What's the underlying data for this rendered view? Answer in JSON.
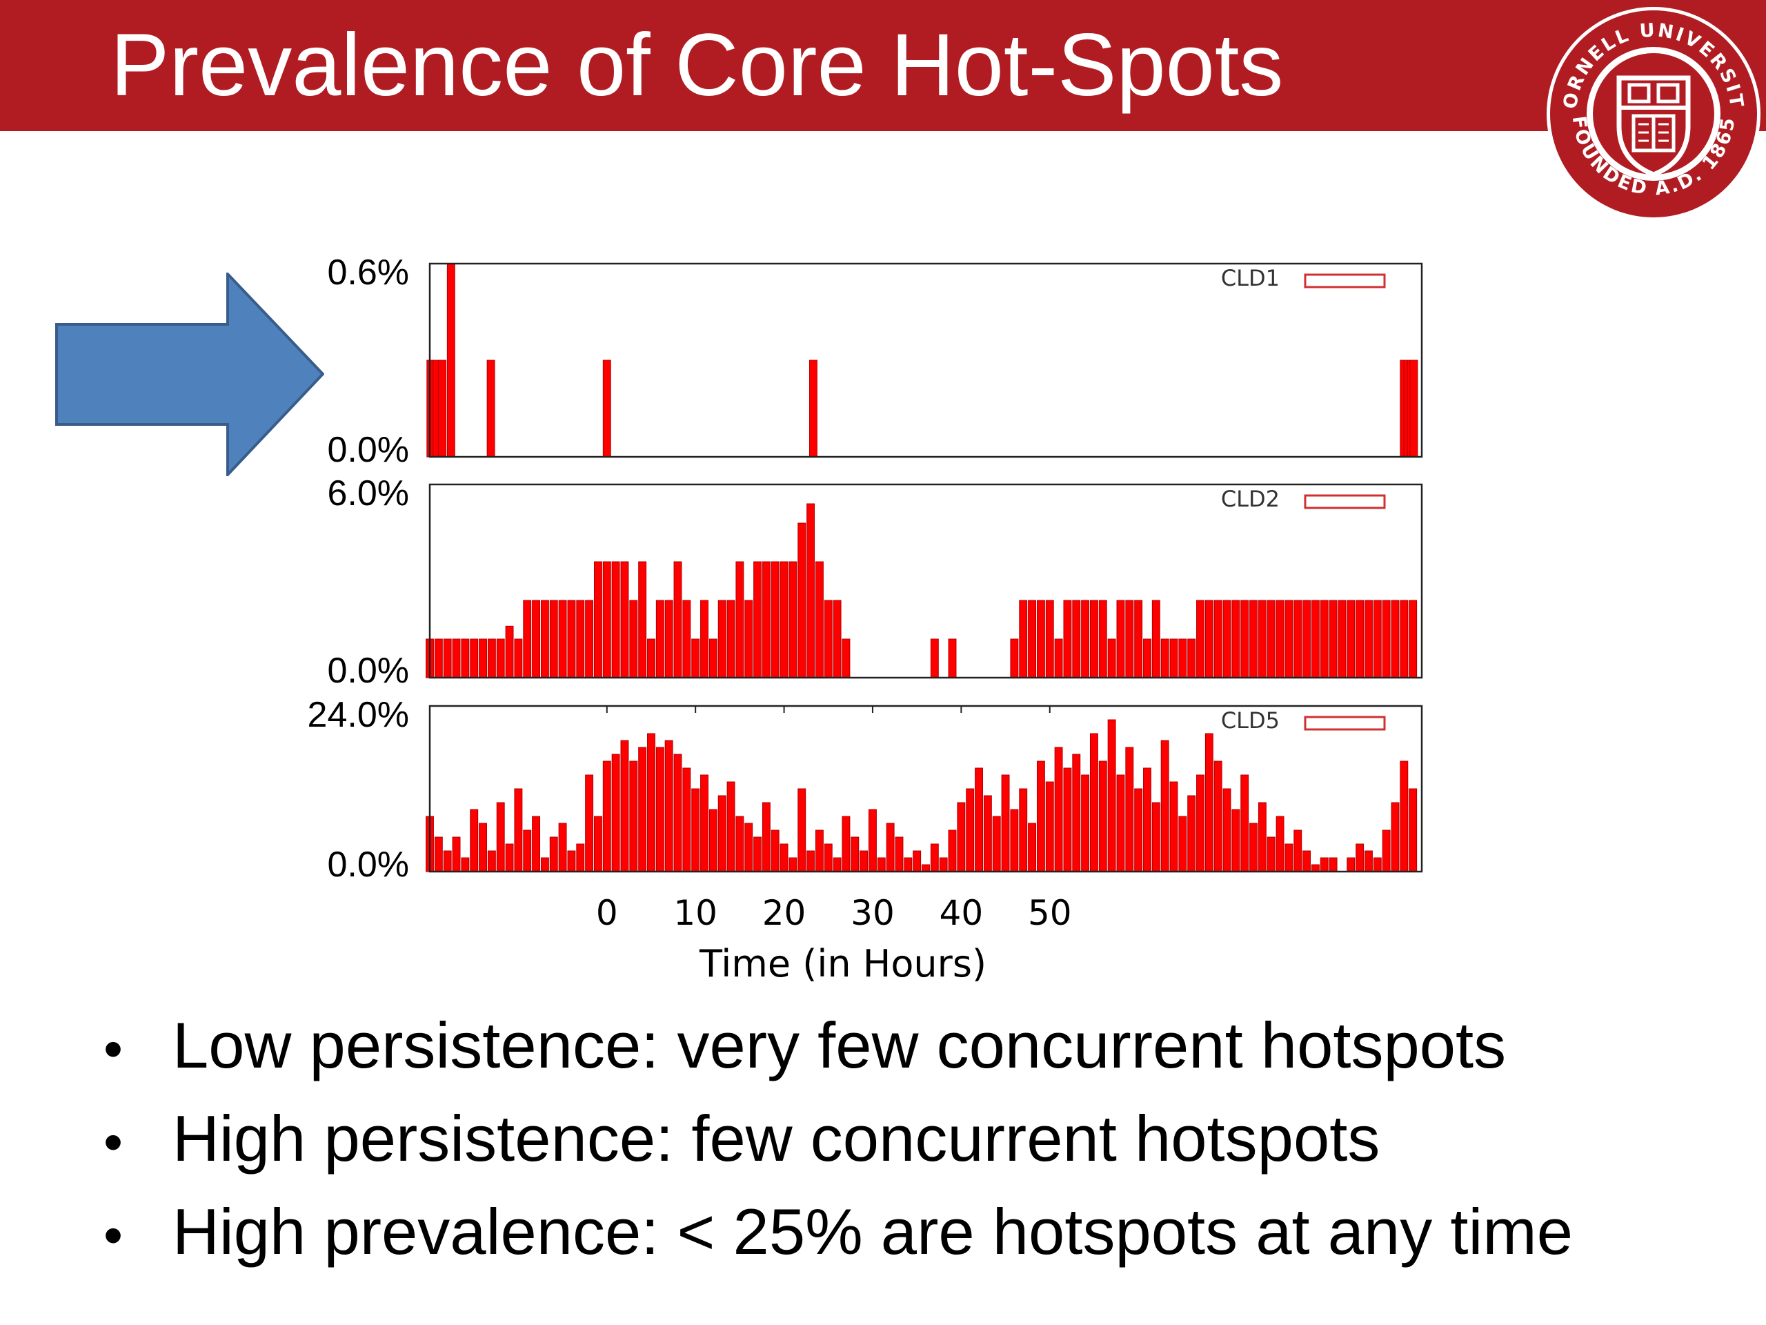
{
  "slide": {
    "title": "Prevalence of Core Hot-Spots",
    "bullets": [
      "Low persistence: very few concurrent hotspots",
      "High persistence: few concurrent hotspots",
      "High prevalence: < 25% are hotspots at any time"
    ],
    "bullet_glyph": "•"
  },
  "seal": {
    "text_top": "CORNELL UNIVERSITY",
    "text_bottom": "FOUNDED A.D. 1865"
  },
  "colors": {
    "brand_red": "#b01c22",
    "bar_red": "#ff0000",
    "arrow_blue": "#4f81bd",
    "arrow_border": "#385d8a"
  },
  "arrow": {
    "icon": "right-arrow-icon"
  },
  "chart_data": {
    "type": "bar",
    "xlabel": "Time (in Hours)",
    "x_ticks": [
      0,
      10,
      20,
      30,
      40,
      50
    ],
    "x_tick_positions_hours": [
      0,
      10,
      20,
      30,
      40,
      50
    ],
    "x_range_hours": [
      -20,
      92
    ],
    "legend_placement": "top-right",
    "grid": false,
    "panels": [
      {
        "series_name": "CLD1",
        "y_tick_labels": [
          "0.6%",
          "0.0%"
        ],
        "ylim": [
          0,
          0.6
        ],
        "bars": [
          [
            -19.9,
            0.3
          ],
          [
            -19.6,
            0.3
          ],
          [
            -19.2,
            0.3
          ],
          [
            -18.6,
            0.3
          ],
          [
            -17.6,
            0.6
          ],
          [
            -13.1,
            0.3
          ],
          [
            0.0,
            0.3
          ],
          [
            23.3,
            0.3
          ],
          [
            90.0,
            0.3
          ],
          [
            90.4,
            0.3
          ],
          [
            90.8,
            0.3
          ],
          [
            91.1,
            0.3
          ]
        ]
      },
      {
        "series_name": "CLD2",
        "y_tick_labels": [
          "6.0%",
          "0.0%"
        ],
        "ylim": [
          0,
          6
        ],
        "bars": [
          [
            -20,
            1.2
          ],
          [
            -19,
            1.2
          ],
          [
            -18,
            1.2
          ],
          [
            -17,
            1.2
          ],
          [
            -16,
            1.2
          ],
          [
            -15,
            1.2
          ],
          [
            -14,
            1.2
          ],
          [
            -13,
            1.2
          ],
          [
            -12,
            1.2
          ],
          [
            -11,
            1.6
          ],
          [
            -10,
            1.2
          ],
          [
            -9,
            2.4
          ],
          [
            -8,
            2.4
          ],
          [
            -7,
            2.4
          ],
          [
            -6,
            2.4
          ],
          [
            -5,
            2.4
          ],
          [
            -4,
            2.4
          ],
          [
            -3,
            2.4
          ],
          [
            -2,
            2.4
          ],
          [
            -1,
            3.6
          ],
          [
            0,
            3.6
          ],
          [
            1,
            3.6
          ],
          [
            2,
            3.6
          ],
          [
            3,
            2.4
          ],
          [
            4,
            3.6
          ],
          [
            5,
            1.2
          ],
          [
            6,
            2.4
          ],
          [
            7,
            2.4
          ],
          [
            8,
            3.6
          ],
          [
            9,
            2.4
          ],
          [
            10,
            1.2
          ],
          [
            11,
            2.4
          ],
          [
            12,
            1.2
          ],
          [
            13,
            2.4
          ],
          [
            14,
            2.4
          ],
          [
            15,
            3.6
          ],
          [
            16,
            2.4
          ],
          [
            17,
            3.6
          ],
          [
            18,
            3.6
          ],
          [
            19,
            3.6
          ],
          [
            20,
            3.6
          ],
          [
            21,
            3.6
          ],
          [
            22,
            4.8
          ],
          [
            23,
            5.4
          ],
          [
            24,
            3.6
          ],
          [
            25,
            2.4
          ],
          [
            26,
            2.4
          ],
          [
            27,
            1.2
          ],
          [
            28,
            0
          ],
          [
            36,
            0
          ],
          [
            37,
            1.2
          ],
          [
            38,
            0
          ],
          [
            39,
            1.2
          ],
          [
            40,
            0
          ],
          [
            46,
            1.2
          ],
          [
            47,
            2.4
          ],
          [
            48,
            2.4
          ],
          [
            49,
            2.4
          ],
          [
            50,
            2.4
          ],
          [
            51,
            1.2
          ],
          [
            52,
            2.4
          ],
          [
            53,
            2.4
          ],
          [
            54,
            2.4
          ],
          [
            55,
            2.4
          ],
          [
            56,
            2.4
          ],
          [
            57,
            1.2
          ],
          [
            58,
            2.4
          ],
          [
            59,
            2.4
          ],
          [
            60,
            2.4
          ],
          [
            61,
            1.2
          ],
          [
            62,
            2.4
          ],
          [
            63,
            1.2
          ],
          [
            64,
            1.2
          ],
          [
            65,
            1.2
          ],
          [
            66,
            1.2
          ],
          [
            67,
            2.4
          ],
          [
            68,
            2.4
          ],
          [
            69,
            2.4
          ],
          [
            70,
            2.4
          ],
          [
            71,
            2.4
          ],
          [
            72,
            2.4
          ],
          [
            73,
            2.4
          ],
          [
            74,
            2.4
          ],
          [
            75,
            2.4
          ],
          [
            76,
            2.4
          ],
          [
            77,
            2.4
          ],
          [
            78,
            2.4
          ],
          [
            79,
            2.4
          ],
          [
            80,
            2.4
          ],
          [
            81,
            2.4
          ],
          [
            82,
            2.4
          ],
          [
            83,
            2.4
          ],
          [
            84,
            2.4
          ],
          [
            85,
            2.4
          ],
          [
            86,
            2.4
          ],
          [
            87,
            2.4
          ],
          [
            88,
            2.4
          ],
          [
            89,
            2.4
          ],
          [
            90,
            2.4
          ],
          [
            91,
            2.4
          ]
        ]
      },
      {
        "series_name": "CLD5",
        "y_tick_labels": [
          "24.0%",
          "0.0%"
        ],
        "ylim": [
          0,
          24
        ],
        "bars": [
          [
            -20,
            8
          ],
          [
            -19,
            5
          ],
          [
            -18,
            3
          ],
          [
            -17,
            5
          ],
          [
            -16,
            2
          ],
          [
            -15,
            9
          ],
          [
            -14,
            7
          ],
          [
            -13,
            3
          ],
          [
            -12,
            10
          ],
          [
            -11,
            4
          ],
          [
            -10,
            12
          ],
          [
            -9,
            6
          ],
          [
            -8,
            8
          ],
          [
            -7,
            2
          ],
          [
            -6,
            5
          ],
          [
            -5,
            7
          ],
          [
            -4,
            3
          ],
          [
            -3,
            4
          ],
          [
            -2,
            14
          ],
          [
            -1,
            8
          ],
          [
            0,
            16
          ],
          [
            1,
            17
          ],
          [
            2,
            19
          ],
          [
            3,
            16
          ],
          [
            4,
            18
          ],
          [
            5,
            20
          ],
          [
            6,
            18
          ],
          [
            7,
            19
          ],
          [
            8,
            17
          ],
          [
            9,
            15
          ],
          [
            10,
            12
          ],
          [
            11,
            14
          ],
          [
            12,
            9
          ],
          [
            13,
            11
          ],
          [
            14,
            13
          ],
          [
            15,
            8
          ],
          [
            16,
            7
          ],
          [
            17,
            5
          ],
          [
            18,
            10
          ],
          [
            19,
            6
          ],
          [
            20,
            4
          ],
          [
            21,
            2
          ],
          [
            22,
            12
          ],
          [
            23,
            3
          ],
          [
            24,
            6
          ],
          [
            25,
            4
          ],
          [
            26,
            2
          ],
          [
            27,
            8
          ],
          [
            28,
            5
          ],
          [
            29,
            3
          ],
          [
            30,
            9
          ],
          [
            31,
            2
          ],
          [
            32,
            7
          ],
          [
            33,
            5
          ],
          [
            34,
            2
          ],
          [
            35,
            3
          ],
          [
            36,
            1
          ],
          [
            37,
            4
          ],
          [
            38,
            2
          ],
          [
            39,
            6
          ],
          [
            40,
            10
          ],
          [
            41,
            12
          ],
          [
            42,
            15
          ],
          [
            43,
            11
          ],
          [
            44,
            8
          ],
          [
            45,
            14
          ],
          [
            46,
            9
          ],
          [
            47,
            12
          ],
          [
            48,
            7
          ],
          [
            49,
            16
          ],
          [
            50,
            13
          ],
          [
            51,
            18
          ],
          [
            52,
            15
          ],
          [
            53,
            17
          ],
          [
            54,
            14
          ],
          [
            55,
            20
          ],
          [
            56,
            16
          ],
          [
            57,
            22
          ],
          [
            58,
            14
          ],
          [
            59,
            18
          ],
          [
            60,
            12
          ],
          [
            61,
            15
          ],
          [
            62,
            10
          ],
          [
            63,
            19
          ],
          [
            64,
            13
          ],
          [
            65,
            8
          ],
          [
            66,
            11
          ],
          [
            67,
            14
          ],
          [
            68,
            20
          ],
          [
            69,
            16
          ],
          [
            70,
            12
          ],
          [
            71,
            9
          ],
          [
            72,
            14
          ],
          [
            73,
            7
          ],
          [
            74,
            10
          ],
          [
            75,
            5
          ],
          [
            76,
            8
          ],
          [
            77,
            4
          ],
          [
            78,
            6
          ],
          [
            79,
            3
          ],
          [
            80,
            1
          ],
          [
            81,
            2
          ],
          [
            82,
            2
          ],
          [
            84,
            2
          ],
          [
            85,
            4
          ],
          [
            86,
            3
          ],
          [
            87,
            2
          ],
          [
            88,
            6
          ],
          [
            89,
            10
          ],
          [
            90,
            16
          ],
          [
            91,
            12
          ]
        ]
      }
    ]
  }
}
